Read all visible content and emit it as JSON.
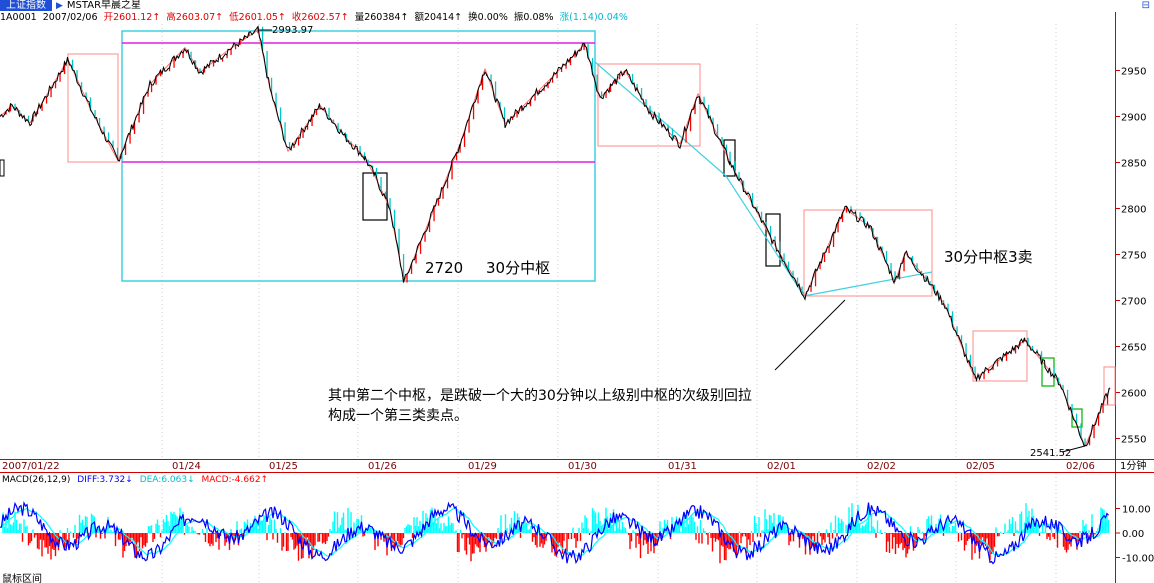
{
  "header": {
    "tab_title": "上证指数",
    "tab_arrow": "▶",
    "tab_name": "MSTAR早晨之星",
    "window_icon": "⊟"
  },
  "info": {
    "code": "1A0001",
    "date": "2007/02/06",
    "open": "开2601.12↑",
    "high": "高2603.07↑",
    "low": "低2601.05↑",
    "close": "收2602.57↑",
    "volume": "量260384↑",
    "amount": "额20414↑",
    "turnover": "换0.00%",
    "amplitude": "振0.08%",
    "change": "涨(1.14)0.04%"
  },
  "macd_label": {
    "params": "MACD(26,12,9)",
    "diff": "DIFF:3.732↓",
    "dea": "DEA:6.063↓",
    "macd": "MACD:-4.662↑"
  },
  "colors": {
    "price_line": "#000000",
    "up_candle": "#ff0000",
    "down_candle": "#00c8c8",
    "zhongshu_30min_box": "#40d0e0",
    "zhongshu_bounds": "#e020e0",
    "pivot_box": "#ff8888",
    "small_box": "#000000",
    "green_box": "#00b000",
    "diff_line": "#0000ff",
    "dea_line": "#00ffff",
    "macd_neg": "#ff0000"
  },
  "chart_data": [
    {
      "type": "line",
      "title": "上证指数 1分钟",
      "period_label": "1分钟",
      "x_labels": [
        "2007/01/22",
        "01/24",
        "01/25",
        "01/26",
        "01/29",
        "01/30",
        "01/31",
        "02/01",
        "02/02",
        "02/05",
        "02/06"
      ],
      "y_ticks": [
        2550,
        2600,
        2650,
        2700,
        2750,
        2800,
        2850,
        2900,
        2950
      ],
      "ylim": [
        2530,
        3000
      ],
      "price_path": [
        [
          0,
          2900
        ],
        [
          12,
          2912
        ],
        [
          30,
          2893
        ],
        [
          68,
          2962
        ],
        [
          92,
          2905
        ],
        [
          118,
          2852
        ],
        [
          150,
          2935
        ],
        [
          185,
          2975
        ],
        [
          200,
          2948
        ],
        [
          228,
          2972
        ],
        [
          258,
          2993.97
        ],
        [
          270,
          2930
        ],
        [
          288,
          2862
        ],
        [
          320,
          2912
        ],
        [
          345,
          2878
        ],
        [
          365,
          2855
        ],
        [
          375,
          2835
        ],
        [
          390,
          2800
        ],
        [
          404,
          2720
        ],
        [
          440,
          2815
        ],
        [
          460,
          2870
        ],
        [
          485,
          2952
        ],
        [
          505,
          2892
        ],
        [
          545,
          2935
        ],
        [
          585,
          2979
        ],
        [
          600,
          2920
        ],
        [
          625,
          2950
        ],
        [
          650,
          2905
        ],
        [
          680,
          2870
        ],
        [
          698,
          2925
        ],
        [
          730,
          2850
        ],
        [
          775,
          2760
        ],
        [
          805,
          2705
        ],
        [
          845,
          2800
        ],
        [
          870,
          2780
        ],
        [
          895,
          2720
        ],
        [
          905,
          2752
        ],
        [
          930,
          2718
        ],
        [
          945,
          2695
        ],
        [
          975,
          2615
        ],
        [
          1025,
          2657
        ],
        [
          1045,
          2630
        ],
        [
          1060,
          2610
        ],
        [
          1085,
          2541.52
        ],
        [
          1110,
          2605
        ]
      ],
      "annotations": {
        "peak_label": "2993.97",
        "low_label_1": "2720",
        "zhongshu_label": "30分中枢",
        "sell3_label": "30分中枢3卖",
        "low_label_2": "2541.52",
        "comment_line1": "其中第二个中枢，是跌破一个大的30分钟以上级别中枢的次级别回拉",
        "comment_line2": "构成一个第三类卖点。"
      }
    },
    {
      "type": "line",
      "title": "MACD(26,12,9)",
      "y_ticks": [
        10.0,
        0.0,
        -10.0
      ],
      "y_tick_labels": [
        "10.00",
        "0.00",
        "-10.00"
      ],
      "ylim": [
        -16,
        18
      ],
      "series": [
        {
          "name": "DIFF",
          "value": 3.732
        },
        {
          "name": "DEA",
          "value": 6.063
        },
        {
          "name": "MACD",
          "value": -4.662
        }
      ]
    }
  ],
  "footer": {
    "bottom_label": "鼠标区间"
  }
}
